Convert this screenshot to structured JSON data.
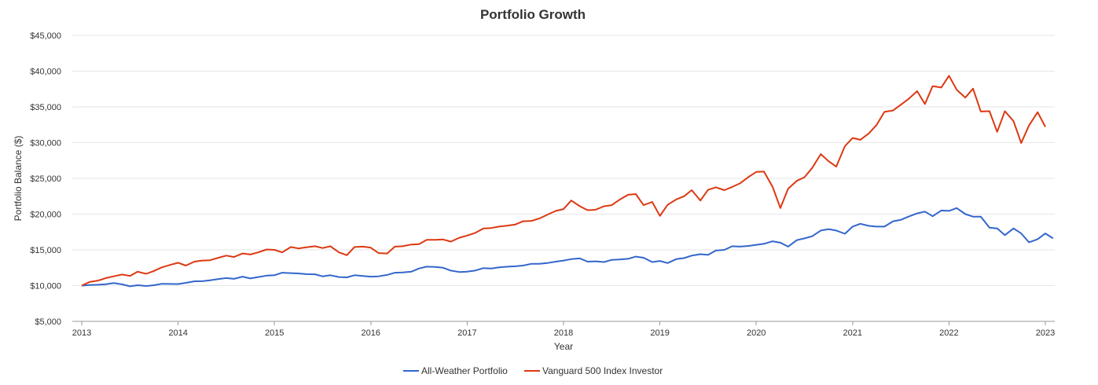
{
  "chart_data": {
    "type": "line",
    "title": "Portfolio Growth",
    "xlabel": "Year",
    "ylabel": "Portfolio Balance ($)",
    "ylim": [
      5000,
      45000
    ],
    "xlim": [
      2013,
      2023
    ],
    "grid": true,
    "legend_position": "bottom-center",
    "y_ticks": [
      {
        "value": 5000,
        "label": "$5,000"
      },
      {
        "value": 10000,
        "label": "$10,000"
      },
      {
        "value": 15000,
        "label": "$15,000"
      },
      {
        "value": 20000,
        "label": "$20,000"
      },
      {
        "value": 25000,
        "label": "$25,000"
      },
      {
        "value": 30000,
        "label": "$30,000"
      },
      {
        "value": 35000,
        "label": "$35,000"
      },
      {
        "value": 40000,
        "label": "$40,000"
      },
      {
        "value": 45000,
        "label": "$45,000"
      }
    ],
    "x_ticks": [
      {
        "value": 2013,
        "label": "2013"
      },
      {
        "value": 2014,
        "label": "2014"
      },
      {
        "value": 2015,
        "label": "2015"
      },
      {
        "value": 2016,
        "label": "2016"
      },
      {
        "value": 2017,
        "label": "2017"
      },
      {
        "value": 2018,
        "label": "2018"
      },
      {
        "value": 2019,
        "label": "2019"
      },
      {
        "value": 2020,
        "label": "2020"
      },
      {
        "value": 2021,
        "label": "2021"
      },
      {
        "value": 2022,
        "label": "2022"
      },
      {
        "value": 2023,
        "label": "2023"
      }
    ],
    "series": [
      {
        "name": "All-Weather Portfolio",
        "color": "#3366cc",
        "points": [
          [
            2013.0,
            10000
          ],
          [
            2013.08,
            10080
          ],
          [
            2013.17,
            10120
          ],
          [
            2013.25,
            10200
          ],
          [
            2013.33,
            10350
          ],
          [
            2013.42,
            10180
          ],
          [
            2013.5,
            9900
          ],
          [
            2013.58,
            10050
          ],
          [
            2013.67,
            9950
          ],
          [
            2013.75,
            10050
          ],
          [
            2013.83,
            10250
          ],
          [
            2013.92,
            10230
          ],
          [
            2014.0,
            10220
          ],
          [
            2014.08,
            10380
          ],
          [
            2014.17,
            10600
          ],
          [
            2014.25,
            10620
          ],
          [
            2014.33,
            10750
          ],
          [
            2014.42,
            10920
          ],
          [
            2014.5,
            11050
          ],
          [
            2014.58,
            10950
          ],
          [
            2014.67,
            11250
          ],
          [
            2014.75,
            11000
          ],
          [
            2014.83,
            11200
          ],
          [
            2014.92,
            11400
          ],
          [
            2015.0,
            11450
          ],
          [
            2015.08,
            11800
          ],
          [
            2015.17,
            11750
          ],
          [
            2015.25,
            11700
          ],
          [
            2015.33,
            11600
          ],
          [
            2015.42,
            11580
          ],
          [
            2015.5,
            11300
          ],
          [
            2015.58,
            11450
          ],
          [
            2015.67,
            11200
          ],
          [
            2015.75,
            11150
          ],
          [
            2015.83,
            11450
          ],
          [
            2015.92,
            11350
          ],
          [
            2016.0,
            11250
          ],
          [
            2016.08,
            11300
          ],
          [
            2016.17,
            11500
          ],
          [
            2016.25,
            11800
          ],
          [
            2016.33,
            11850
          ],
          [
            2016.42,
            11950
          ],
          [
            2016.5,
            12400
          ],
          [
            2016.58,
            12650
          ],
          [
            2016.67,
            12600
          ],
          [
            2016.75,
            12500
          ],
          [
            2016.83,
            12100
          ],
          [
            2016.92,
            11900
          ],
          [
            2017.0,
            11950
          ],
          [
            2017.08,
            12100
          ],
          [
            2017.17,
            12450
          ],
          [
            2017.25,
            12400
          ],
          [
            2017.33,
            12550
          ],
          [
            2017.42,
            12650
          ],
          [
            2017.5,
            12700
          ],
          [
            2017.58,
            12800
          ],
          [
            2017.67,
            13050
          ],
          [
            2017.75,
            13050
          ],
          [
            2017.83,
            13150
          ],
          [
            2017.92,
            13350
          ],
          [
            2018.0,
            13500
          ],
          [
            2018.08,
            13700
          ],
          [
            2018.17,
            13800
          ],
          [
            2018.25,
            13350
          ],
          [
            2018.33,
            13400
          ],
          [
            2018.42,
            13300
          ],
          [
            2018.5,
            13600
          ],
          [
            2018.58,
            13650
          ],
          [
            2018.67,
            13750
          ],
          [
            2018.75,
            14050
          ],
          [
            2018.83,
            13900
          ],
          [
            2018.92,
            13300
          ],
          [
            2019.0,
            13450
          ],
          [
            2019.08,
            13150
          ],
          [
            2019.17,
            13700
          ],
          [
            2019.25,
            13850
          ],
          [
            2019.33,
            14200
          ],
          [
            2019.42,
            14400
          ],
          [
            2019.5,
            14300
          ],
          [
            2019.58,
            14900
          ],
          [
            2019.67,
            15000
          ],
          [
            2019.75,
            15500
          ],
          [
            2019.83,
            15450
          ],
          [
            2019.92,
            15550
          ],
          [
            2020.0,
            15700
          ],
          [
            2020.08,
            15850
          ],
          [
            2020.17,
            16200
          ],
          [
            2020.25,
            16000
          ],
          [
            2020.33,
            15450
          ],
          [
            2020.42,
            16350
          ],
          [
            2020.5,
            16600
          ],
          [
            2020.58,
            16900
          ],
          [
            2020.67,
            17700
          ],
          [
            2020.75,
            17900
          ],
          [
            2020.83,
            17700
          ],
          [
            2020.92,
            17250
          ],
          [
            2021.0,
            18250
          ],
          [
            2021.08,
            18650
          ],
          [
            2021.17,
            18350
          ],
          [
            2021.25,
            18250
          ],
          [
            2021.33,
            18250
          ],
          [
            2021.42,
            19000
          ],
          [
            2021.5,
            19200
          ],
          [
            2021.58,
            19650
          ],
          [
            2021.67,
            20100
          ],
          [
            2021.75,
            20350
          ],
          [
            2021.83,
            19700
          ],
          [
            2021.92,
            20500
          ],
          [
            2022.0,
            20450
          ],
          [
            2022.08,
            20850
          ],
          [
            2022.17,
            20000
          ],
          [
            2022.25,
            19650
          ],
          [
            2022.33,
            19650
          ],
          [
            2022.42,
            18100
          ],
          [
            2022.5,
            18000
          ],
          [
            2022.58,
            17050
          ],
          [
            2022.67,
            18000
          ],
          [
            2022.75,
            17300
          ],
          [
            2022.83,
            16050
          ],
          [
            2022.92,
            16500
          ],
          [
            2023.0,
            17300
          ],
          [
            2023.08,
            16600
          ]
        ]
      },
      {
        "name": "Vanguard 500 Index Investor",
        "color": "#dc3912",
        "points": [
          [
            2013.0,
            10000
          ],
          [
            2013.08,
            10500
          ],
          [
            2013.17,
            10700
          ],
          [
            2013.25,
            11050
          ],
          [
            2013.33,
            11300
          ],
          [
            2013.42,
            11550
          ],
          [
            2013.5,
            11350
          ],
          [
            2013.58,
            11950
          ],
          [
            2013.67,
            11650
          ],
          [
            2013.75,
            12050
          ],
          [
            2013.83,
            12550
          ],
          [
            2013.92,
            12900
          ],
          [
            2014.0,
            13200
          ],
          [
            2014.08,
            12800
          ],
          [
            2014.17,
            13350
          ],
          [
            2014.25,
            13500
          ],
          [
            2014.33,
            13550
          ],
          [
            2014.42,
            13900
          ],
          [
            2014.5,
            14200
          ],
          [
            2014.58,
            14000
          ],
          [
            2014.67,
            14500
          ],
          [
            2014.75,
            14350
          ],
          [
            2014.83,
            14650
          ],
          [
            2014.92,
            15050
          ],
          [
            2015.0,
            15000
          ],
          [
            2015.08,
            14650
          ],
          [
            2015.17,
            15400
          ],
          [
            2015.25,
            15200
          ],
          [
            2015.33,
            15350
          ],
          [
            2015.42,
            15500
          ],
          [
            2015.5,
            15250
          ],
          [
            2015.58,
            15500
          ],
          [
            2015.67,
            14650
          ],
          [
            2015.75,
            14250
          ],
          [
            2015.83,
            15400
          ],
          [
            2015.92,
            15450
          ],
          [
            2016.0,
            15300
          ],
          [
            2016.08,
            14550
          ],
          [
            2016.17,
            14500
          ],
          [
            2016.25,
            15450
          ],
          [
            2016.33,
            15500
          ],
          [
            2016.42,
            15750
          ],
          [
            2016.5,
            15800
          ],
          [
            2016.58,
            16400
          ],
          [
            2016.67,
            16400
          ],
          [
            2016.75,
            16450
          ],
          [
            2016.83,
            16150
          ],
          [
            2016.92,
            16700
          ],
          [
            2017.0,
            17000
          ],
          [
            2017.08,
            17350
          ],
          [
            2017.17,
            18000
          ],
          [
            2017.25,
            18050
          ],
          [
            2017.33,
            18250
          ],
          [
            2017.42,
            18400
          ],
          [
            2017.5,
            18550
          ],
          [
            2017.58,
            19000
          ],
          [
            2017.67,
            19050
          ],
          [
            2017.75,
            19400
          ],
          [
            2017.83,
            19900
          ],
          [
            2017.92,
            20450
          ],
          [
            2018.0,
            20700
          ],
          [
            2018.08,
            21900
          ],
          [
            2018.17,
            21100
          ],
          [
            2018.25,
            20550
          ],
          [
            2018.33,
            20600
          ],
          [
            2018.42,
            21100
          ],
          [
            2018.5,
            21250
          ],
          [
            2018.58,
            22000
          ],
          [
            2018.67,
            22700
          ],
          [
            2018.75,
            22800
          ],
          [
            2018.83,
            21250
          ],
          [
            2018.92,
            21700
          ],
          [
            2019.0,
            19750
          ],
          [
            2019.08,
            21300
          ],
          [
            2019.17,
            22050
          ],
          [
            2019.25,
            22500
          ],
          [
            2019.33,
            23350
          ],
          [
            2019.42,
            21900
          ],
          [
            2019.5,
            23400
          ],
          [
            2019.58,
            23750
          ],
          [
            2019.67,
            23350
          ],
          [
            2019.75,
            23800
          ],
          [
            2019.83,
            24300
          ],
          [
            2019.92,
            25200
          ],
          [
            2020.0,
            25900
          ],
          [
            2020.08,
            25950
          ],
          [
            2020.17,
            23800
          ],
          [
            2020.25,
            20850
          ],
          [
            2020.33,
            23550
          ],
          [
            2020.42,
            24650
          ],
          [
            2020.5,
            25150
          ],
          [
            2020.58,
            26450
          ],
          [
            2020.67,
            28400
          ],
          [
            2020.75,
            27400
          ],
          [
            2020.83,
            26650
          ],
          [
            2020.92,
            29500
          ],
          [
            2021.0,
            30650
          ],
          [
            2021.08,
            30400
          ],
          [
            2021.17,
            31300
          ],
          [
            2021.25,
            32500
          ],
          [
            2021.33,
            34300
          ],
          [
            2021.42,
            34500
          ],
          [
            2021.5,
            35300
          ],
          [
            2021.58,
            36100
          ],
          [
            2021.67,
            37200
          ],
          [
            2021.75,
            35400
          ],
          [
            2021.83,
            37900
          ],
          [
            2021.92,
            37700
          ],
          [
            2022.0,
            39350
          ],
          [
            2022.08,
            37400
          ],
          [
            2022.17,
            36300
          ],
          [
            2022.25,
            37550
          ],
          [
            2022.33,
            34350
          ],
          [
            2022.42,
            34400
          ],
          [
            2022.5,
            31500
          ],
          [
            2022.58,
            34400
          ],
          [
            2022.67,
            33000
          ],
          [
            2022.75,
            29950
          ],
          [
            2022.83,
            32400
          ],
          [
            2022.92,
            34250
          ],
          [
            2023.0,
            32200
          ]
        ]
      }
    ]
  }
}
